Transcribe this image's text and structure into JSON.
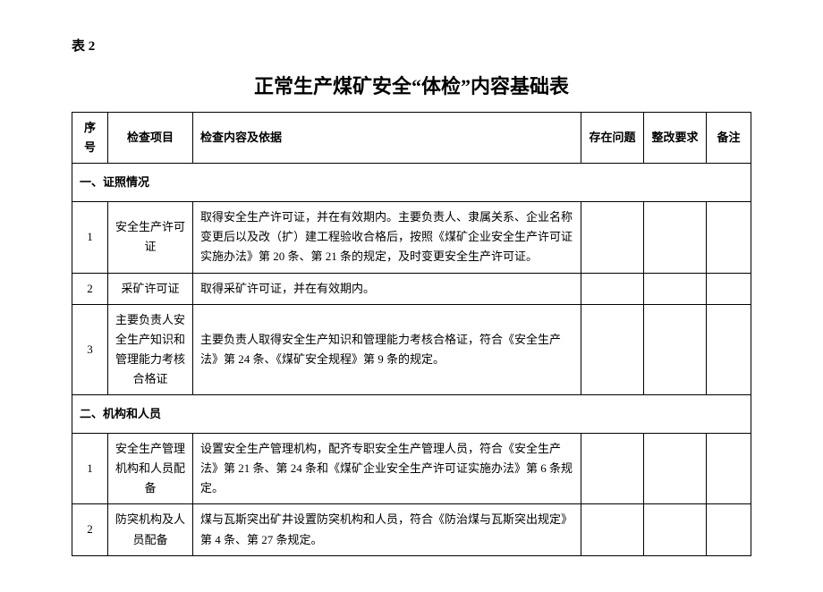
{
  "table_label": "表 2",
  "title": "正常生产煤矿安全“体检”内容基础表",
  "headers": {
    "seq": "序号",
    "item": "检查项目",
    "content": "检查内容及依据",
    "problem": "存在问题",
    "fix": "整改要求",
    "note": "备注"
  },
  "section1": {
    "title": "一、证照情况",
    "rows": [
      {
        "seq": "1",
        "item": "安全生产许可证",
        "content": "取得安全生产许可证，并在有效期内。主要负责人、隶属关系、企业名称变更后以及改（扩）建工程验收合格后，按照《煤矿企业安全生产许可证实施办法》第 20 条、第 21 条的规定，及时变更安全生产许可证。"
      },
      {
        "seq": "2",
        "item": "采矿许可证",
        "content": "取得采矿许可证，并在有效期内。"
      },
      {
        "seq": "3",
        "item": "主要负责人安全生产知识和管理能力考核合格证",
        "content": "主要负责人取得安全生产知识和管理能力考核合格证，符合《安全生产法》第 24 条、《煤矿安全规程》第 9 条的规定。"
      }
    ]
  },
  "section2": {
    "title": "二、机构和人员",
    "rows": [
      {
        "seq": "1",
        "item": "安全生产管理机构和人员配备",
        "content": "设置安全生产管理机构，配齐专职安全生产管理人员，符合《安全生产法》第 21 条、第 24 条和《煤矿企业安全生产许可证实施办法》第 6 条规定。"
      },
      {
        "seq": "2",
        "item": "防突机构及人员配备",
        "content": "煤与瓦斯突出矿井设置防突机构和人员，符合《防治煤与瓦斯突出规定》第 4 条、第 27 条规定。"
      }
    ]
  }
}
